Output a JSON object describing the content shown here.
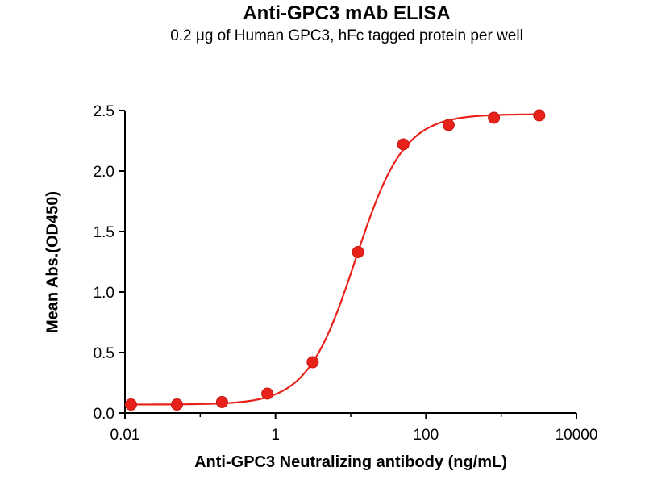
{
  "title": "Anti-GPC3 mAb ELISA",
  "subtitle": "0.2 μg of Human GPC3, hFc tagged protein per well",
  "chart_data": {
    "type": "scatter",
    "title": "Anti-GPC3 mAb ELISA",
    "subtitle": "0.2 μg of Human GPC3, hFc tagged protein per well",
    "xlabel": "Anti-GPC3 Neutralizing antibody (ng/mL)",
    "ylabel": "Mean Abs.(OD450)",
    "x_scale": "log10",
    "xlim": [
      0.01,
      10000
    ],
    "ylim": [
      0.0,
      2.5
    ],
    "grid": false,
    "legend": "none",
    "x_ticks": [
      {
        "value": 0.01,
        "label": "0.01"
      },
      {
        "value": 1,
        "label": "1"
      },
      {
        "value": 100,
        "label": "100"
      },
      {
        "value": 10000,
        "label": "10000"
      }
    ],
    "x_minor_ticks": [
      0.1,
      10,
      1000
    ],
    "y_ticks": [
      {
        "value": 0.0,
        "label": "0.0"
      },
      {
        "value": 0.5,
        "label": "0.5"
      },
      {
        "value": 1.0,
        "label": "1.0"
      },
      {
        "value": 1.5,
        "label": "1.5"
      },
      {
        "value": 2.0,
        "label": "2.0"
      },
      {
        "value": 2.5,
        "label": "2.5"
      }
    ],
    "series": [
      {
        "name": "Anti-GPC3 mAb",
        "color": "#e8221a",
        "marker": "circle",
        "marker_radius": 7,
        "points": [
          {
            "x": 0.012,
            "y": 0.07
          },
          {
            "x": 0.049,
            "y": 0.07
          },
          {
            "x": 0.195,
            "y": 0.09
          },
          {
            "x": 0.78,
            "y": 0.16
          },
          {
            "x": 3.125,
            "y": 0.42
          },
          {
            "x": 12.5,
            "y": 1.33
          },
          {
            "x": 50,
            "y": 2.22
          },
          {
            "x": 200,
            "y": 2.38
          },
          {
            "x": 800,
            "y": 2.44
          },
          {
            "x": 3200,
            "y": 2.46
          }
        ],
        "fit": {
          "type": "4PL",
          "bottom": 0.07,
          "top": 2.47,
          "ec50": 11.6,
          "hill": 1.35
        }
      }
    ]
  }
}
